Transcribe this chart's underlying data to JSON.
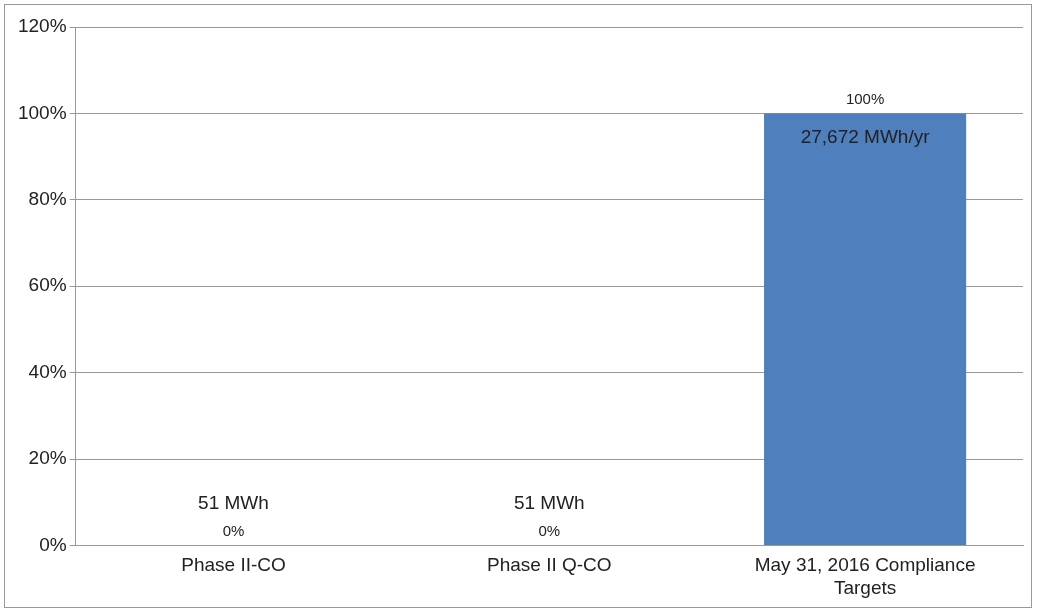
{
  "chart_data": {
    "type": "bar",
    "categories": [
      "Phase II-CO",
      "Phase II Q-CO",
      "May 31, 2016 Compliance Targets"
    ],
    "series": [
      {
        "color": "#4f7fbc",
        "values": [
          0,
          0,
          100
        ],
        "value_labels": [
          "0%",
          "0%",
          "100%"
        ]
      }
    ],
    "ylim": [
      0,
      120
    ],
    "yticks": [
      {
        "value": 0,
        "label": "0%"
      },
      {
        "value": 20,
        "label": "20%"
      },
      {
        "value": 40,
        "label": "40%"
      },
      {
        "value": 60,
        "label": "60%"
      },
      {
        "value": 80,
        "label": "80%"
      },
      {
        "value": 100,
        "label": "100%"
      },
      {
        "value": 120,
        "label": "120%"
      }
    ],
    "grid": "y",
    "annotations": [
      {
        "text": "51 MWh",
        "x": "Phase II-CO",
        "y": 0
      },
      {
        "text": "51 MWh",
        "x": "Phase II Q-CO",
        "y": 0
      },
      {
        "text": "27,672 MWh/yr",
        "x": "May 31, 2016 Compliance Targets",
        "y": 100
      }
    ]
  }
}
